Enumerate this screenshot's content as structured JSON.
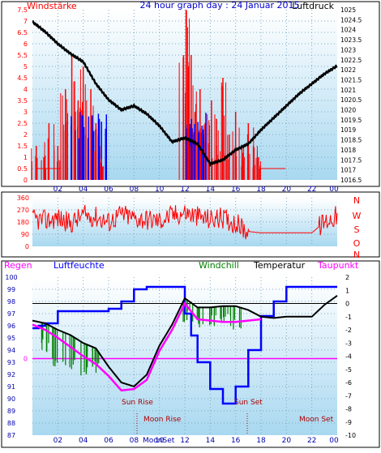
{
  "panel1": {
    "title": "24 hour graph day : 24 Januar 2015",
    "left_label": "Windstärke",
    "right_label": "Luftdruck",
    "wind_ticks": [
      "7.5",
      "7",
      "6.5",
      "6",
      "5.5",
      "5",
      "4.5",
      "4",
      "3.5",
      "3",
      "2.5",
      "2",
      "1.5",
      "1",
      "0.5",
      "0"
    ],
    "pressure_ticks": [
      "1025",
      "1024.5",
      "1024",
      "1023.5",
      "1023",
      "1022.5",
      "1022",
      "1021.5",
      "1021",
      "1020.5",
      "1020",
      "1019.5",
      "1019",
      "1018.5",
      "1018",
      "1017.5",
      "1017",
      "1016.5"
    ],
    "hour_ticks": [
      "02",
      "04",
      "06",
      "08",
      "10",
      "12",
      "14",
      "16",
      "18",
      "20",
      "22",
      "00"
    ]
  },
  "panel2": {
    "dir_ticks": [
      "360",
      "270",
      "180",
      "90",
      "0"
    ],
    "compass_letters": [
      "N",
      "W",
      "S",
      "O",
      "N"
    ]
  },
  "panel3": {
    "legend": {
      "regen": "Regen",
      "luftfeuchte": "Luftfeuchte",
      "windchill": "Windchill",
      "temperatur": "Temperatur",
      "taupunkt": "Taupunkt"
    },
    "humidity_ticks": [
      "100",
      "99",
      "98",
      "97",
      "96",
      "95",
      "94",
      "93",
      "92",
      "91",
      "90",
      "89",
      "88",
      "87"
    ],
    "temp_ticks": [
      "2",
      "1",
      "0",
      "-1",
      "-2",
      "-3",
      "-4",
      "-5",
      "-6",
      "-7",
      "-8",
      "-9",
      "-10"
    ],
    "rain_tick": "0",
    "hour_ticks": [
      "02",
      "04",
      "06",
      "08",
      "10",
      "12",
      "14",
      "16",
      "18",
      "20",
      "22",
      "00"
    ],
    "annotations": {
      "sun_rise": "Sun Rise",
      "sun_set": "Sun Set",
      "moon_rise": "Moon Rise",
      "moon_set": "Moon Set",
      "moonset_label_mid": "MoonSet"
    }
  },
  "colors": {
    "wind": "#ff0000",
    "wind_low": "#0000ff",
    "pressure": "#000000",
    "humidity": "#0000ff",
    "temperature": "#000000",
    "windchill": "#008000",
    "dewpoint": "#ff00ff",
    "rain": "#ff00ff",
    "title": "#0000cc",
    "axis_left": "#ff0000",
    "axis_right": "#000000",
    "bg_top": "#ffffff",
    "bg_bottom": "#a8d8f0"
  },
  "chart_data": [
    {
      "type": "line",
      "title": "24 hour graph day : 24 Januar 2015",
      "xlabel": "",
      "ylabel": "Windstärke",
      "y2label": "Luftdruck",
      "xlim": [
        0,
        24
      ],
      "ylim": [
        0,
        7.5
      ],
      "y2lim": [
        1016.5,
        1025
      ],
      "grid": true,
      "series": [
        {
          "name": "Luftdruck",
          "axis": "right",
          "x": [
            0,
            1,
            2,
            3,
            4,
            5,
            6,
            7,
            8,
            9,
            10,
            11,
            12,
            13,
            14,
            15,
            16,
            17,
            18,
            19,
            20,
            21,
            22,
            23,
            24
          ],
          "y": [
            1024.4,
            1023.9,
            1023.3,
            1022.8,
            1022.4,
            1021.3,
            1020.5,
            1020.0,
            1020.2,
            1019.8,
            1019.2,
            1018.4,
            1018.6,
            1018.3,
            1017.3,
            1017.5,
            1018.0,
            1018.3,
            1019.0,
            1019.6,
            1020.2,
            1020.8,
            1021.3,
            1021.8,
            1022.2
          ]
        },
        {
          "name": "Windstärke",
          "axis": "left",
          "x": [
            0.3,
            0.9,
            1.3,
            2.0,
            2.6,
            3.1,
            3.6,
            4.0,
            4.6,
            5.0,
            5.3,
            5.8,
            11.9,
            12.1,
            12.3,
            12.5,
            12.8,
            13.2,
            13.6,
            14.1,
            14.5,
            15.0,
            15.5,
            16.0,
            16.5,
            17.0,
            17.4,
            17.8
          ],
          "y": [
            1.5,
            1.0,
            2.5,
            1.5,
            4.0,
            5.5,
            3.5,
            5.0,
            4.0,
            2.5,
            1.5,
            1.0,
            5.5,
            7.5,
            5.0,
            5.5,
            3.0,
            4.0,
            2.5,
            3.5,
            1.5,
            4.5,
            2.0,
            3.0,
            1.5,
            2.5,
            1.5,
            1.0
          ]
        }
      ]
    },
    {
      "type": "line",
      "title": "",
      "xlabel": "",
      "ylabel": "",
      "xlim": [
        0,
        24
      ],
      "ylim": [
        0,
        360
      ],
      "series": [
        {
          "name": "",
          "x": [
            0,
            1,
            2,
            3,
            4,
            5,
            6,
            7,
            8,
            9,
            10,
            11,
            12,
            13,
            14,
            15,
            16,
            17,
            18,
            19,
            20,
            21,
            22,
            23,
            24
          ],
          "y": [
            200,
            190,
            210,
            170,
            230,
            220,
            180,
            240,
            210,
            200,
            190,
            230,
            250,
            220,
            200,
            210,
            170,
            110,
            100,
            100,
            100,
            100,
            100,
            180,
            230
          ]
        }
      ]
    },
    {
      "type": "line",
      "title": "",
      "xlabel": "",
      "ylabel": "Luftfeuchte",
      "y2label": "Temperatur",
      "xlim": [
        0,
        24
      ],
      "ylim": [
        87,
        100
      ],
      "y2lim": [
        -10,
        2
      ],
      "grid": true,
      "series": [
        {
          "name": "Luftfeuchte",
          "axis": "left",
          "x": [
            0,
            0.5,
            1,
            2,
            3,
            4,
            5,
            6,
            7,
            8,
            9,
            10,
            11,
            12,
            12.5,
            13,
            14,
            15,
            16,
            17,
            18,
            19,
            20,
            21,
            22,
            23,
            24
          ],
          "y": [
            95.8,
            96.0,
            96.2,
            97.2,
            97.2,
            97.2,
            97.2,
            97.4,
            98.0,
            99.0,
            99.2,
            99.2,
            99.2,
            97.0,
            95.2,
            93.0,
            90.8,
            89.6,
            91.0,
            94.0,
            96.8,
            98.0,
            99.2,
            99.2,
            99.2,
            99.2,
            99.2
          ]
        },
        {
          "name": "Temperatur",
          "axis": "right",
          "x": [
            0,
            1,
            2,
            3,
            4,
            5,
            6,
            7,
            8,
            9,
            10,
            11,
            12,
            13,
            14,
            15,
            16,
            17,
            18,
            19,
            20,
            21,
            22,
            23,
            24
          ],
          "y": [
            -1.3,
            -1.5,
            -2.0,
            -2.4,
            -3.0,
            -3.4,
            -4.8,
            -6.0,
            -6.3,
            -5.4,
            -3.2,
            -1.6,
            0.4,
            -0.3,
            -0.3,
            -0.2,
            -0.2,
            -0.5,
            -1.0,
            -1.1,
            -1.0,
            -1.0,
            -1.0,
            -0.1,
            0.6
          ]
        },
        {
          "name": "Taupunkt",
          "axis": "right",
          "x": [
            0,
            1,
            2,
            3,
            4,
            5,
            6,
            7,
            8,
            9,
            10,
            11,
            12,
            13,
            14,
            15,
            16,
            17,
            18
          ],
          "y": [
            -1.6,
            -2.0,
            -2.6,
            -3.3,
            -4.0,
            -4.6,
            -5.5,
            -6.6,
            -6.5,
            -5.8,
            -3.6,
            -2.0,
            0.0,
            -1.2,
            -1.3,
            -1.4,
            -1.4,
            -1.3,
            -1.2
          ]
        },
        {
          "name": "Windchill",
          "axis": "right",
          "x": [
            1,
            2,
            3,
            4,
            5,
            12,
            13,
            14,
            15,
            16
          ],
          "y": [
            -2.6,
            -3.8,
            -4.2,
            -4.4,
            -4.2,
            -0.4,
            -1.0,
            -0.8,
            -0.7,
            -0.8
          ]
        },
        {
          "name": "Regen",
          "axis": "rain",
          "x": [
            0,
            24
          ],
          "y": [
            0,
            0
          ]
        }
      ]
    }
  ]
}
